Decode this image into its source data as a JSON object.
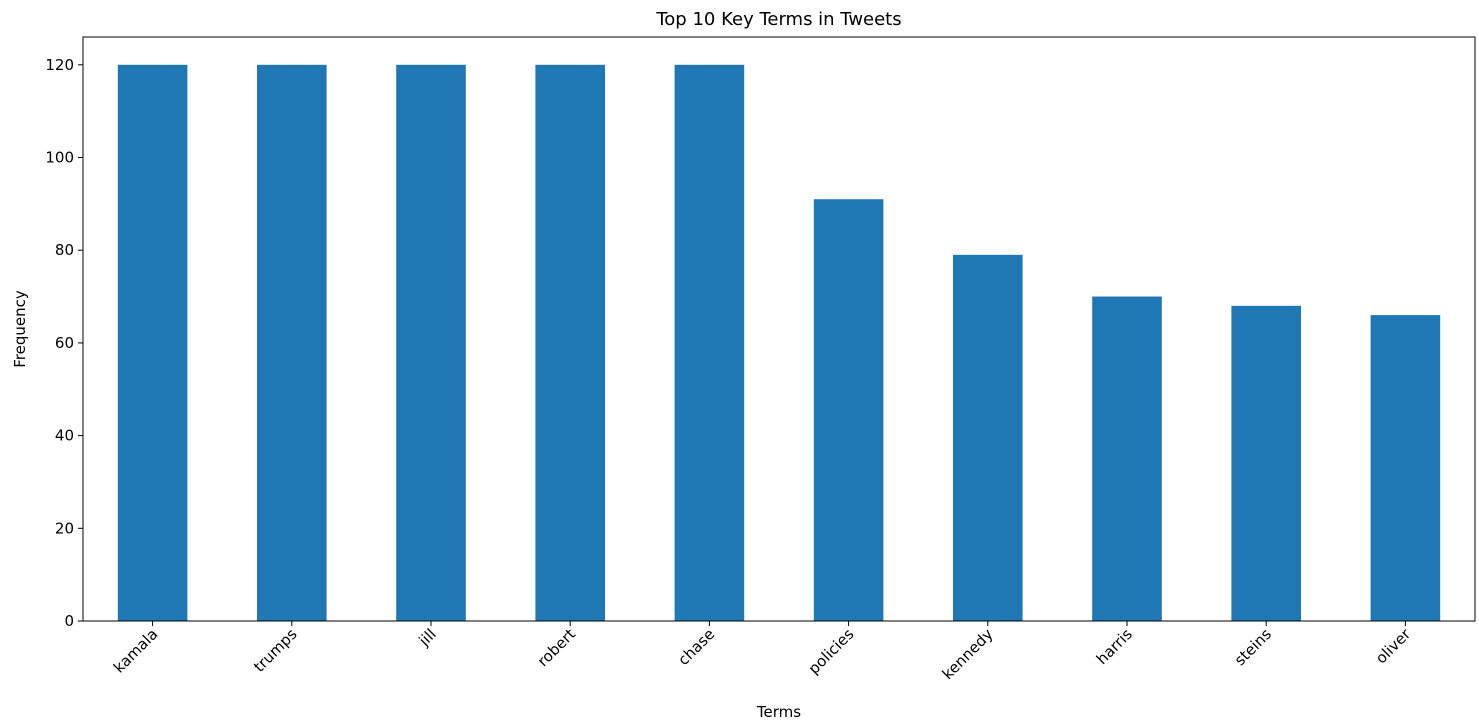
{
  "chart_data": {
    "type": "bar",
    "title": "Top 10 Key Terms in Tweets",
    "xlabel": "Terms",
    "ylabel": "Frequency",
    "categories": [
      "kamala",
      "trumps",
      "jill",
      "robert",
      "chase",
      "policies",
      "kennedy",
      "harris",
      "steins",
      "oliver"
    ],
    "values": [
      120,
      120,
      120,
      120,
      120,
      91,
      79,
      70,
      68,
      66
    ],
    "ylim": [
      0,
      126
    ],
    "yticks": [
      0,
      20,
      40,
      60,
      80,
      100,
      120
    ],
    "bar_color": "#1f77b4",
    "grid": false,
    "x_tick_rotation_deg": 45
  }
}
